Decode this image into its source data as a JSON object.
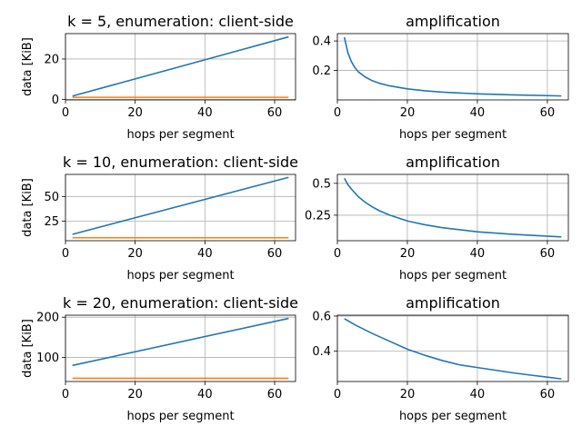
{
  "chart_data": [
    {
      "type": "line",
      "title": "k = 5, enumeration: client-side",
      "xlabel": "hops per segment",
      "ylabel": "data [KiB]",
      "xlim": [
        0,
        66
      ],
      "ylim": [
        -0.3,
        32.6
      ],
      "xticks": [
        0,
        20,
        40,
        60
      ],
      "yticks": [
        0,
        20
      ],
      "grid": true,
      "series": [
        {
          "color": "#1f77b4",
          "x": [
            2,
            64
          ],
          "y": [
            1.6,
            31
          ]
        },
        {
          "color": "#ff7f0e",
          "x": [
            2,
            64
          ],
          "y": [
            1.0,
            1.0
          ]
        }
      ]
    },
    {
      "type": "line",
      "title": "amplification",
      "xlabel": "hops per segment",
      "ylabel": "",
      "xlim": [
        0,
        66
      ],
      "ylim": [
        0.0,
        0.45
      ],
      "xticks": [
        0,
        20,
        40,
        60
      ],
      "yticks": [
        0.2,
        0.4
      ],
      "grid": true,
      "series": [
        {
          "color": "#1f77b4",
          "x": [
            2,
            3,
            4,
            5,
            6,
            8,
            10,
            12,
            15,
            20,
            25,
            30,
            40,
            50,
            64
          ],
          "y": [
            0.425,
            0.32,
            0.26,
            0.22,
            0.19,
            0.155,
            0.13,
            0.113,
            0.095,
            0.075,
            0.062,
            0.053,
            0.041,
            0.034,
            0.027
          ]
        }
      ]
    },
    {
      "type": "line",
      "title": "k = 10, enumeration: client-side",
      "xlabel": "hops per segment",
      "ylabel": "data [KiB]",
      "xlim": [
        0,
        66
      ],
      "ylim": [
        5,
        72.5
      ],
      "xticks": [
        0,
        20,
        40,
        60
      ],
      "yticks": [
        25,
        50
      ],
      "grid": true,
      "series": [
        {
          "color": "#1f77b4",
          "x": [
            2,
            64
          ],
          "y": [
            11.5,
            69.5
          ]
        },
        {
          "color": "#ff7f0e",
          "x": [
            2,
            64
          ],
          "y": [
            8.0,
            8.0
          ]
        }
      ]
    },
    {
      "type": "line",
      "title": "amplification",
      "xlabel": "hops per segment",
      "ylabel": "",
      "xlim": [
        0,
        66
      ],
      "ylim": [
        0.05,
        0.57
      ],
      "xticks": [
        0,
        20,
        40,
        60
      ],
      "yticks": [
        0.25,
        0.5
      ],
      "grid": true,
      "series": [
        {
          "color": "#1f77b4",
          "x": [
            2,
            3,
            4,
            6,
            8,
            10,
            12,
            15,
            20,
            25,
            30,
            40,
            50,
            64
          ],
          "y": [
            0.54,
            0.49,
            0.455,
            0.395,
            0.35,
            0.315,
            0.285,
            0.25,
            0.205,
            0.175,
            0.152,
            0.12,
            0.1,
            0.08
          ]
        }
      ]
    },
    {
      "type": "line",
      "title": "k = 20, enumeration: client-side",
      "xlabel": "hops per segment",
      "ylabel": "data [KiB]",
      "xlim": [
        0,
        66
      ],
      "ylim": [
        40,
        205
      ],
      "xticks": [
        0,
        20,
        40,
        60
      ],
      "yticks": [
        100,
        200
      ],
      "grid": true,
      "series": [
        {
          "color": "#1f77b4",
          "x": [
            2,
            64
          ],
          "y": [
            80,
            197
          ]
        },
        {
          "color": "#ff7f0e",
          "x": [
            2,
            64
          ],
          "y": [
            48,
            48
          ]
        }
      ]
    },
    {
      "type": "line",
      "title": "amplification",
      "xlabel": "hops per segment",
      "ylabel": "",
      "xlim": [
        0,
        66
      ],
      "ylim": [
        0.225,
        0.605
      ],
      "xticks": [
        0,
        20,
        40,
        60
      ],
      "yticks": [
        0.4,
        0.6
      ],
      "grid": true,
      "series": [
        {
          "color": "#1f77b4",
          "x": [
            2,
            5,
            10,
            15,
            20,
            25,
            30,
            35,
            40,
            45,
            50,
            55,
            60,
            64
          ],
          "y": [
            0.585,
            0.55,
            0.5,
            0.455,
            0.41,
            0.375,
            0.345,
            0.32,
            0.305,
            0.29,
            0.275,
            0.262,
            0.25,
            0.24
          ]
        }
      ]
    }
  ]
}
